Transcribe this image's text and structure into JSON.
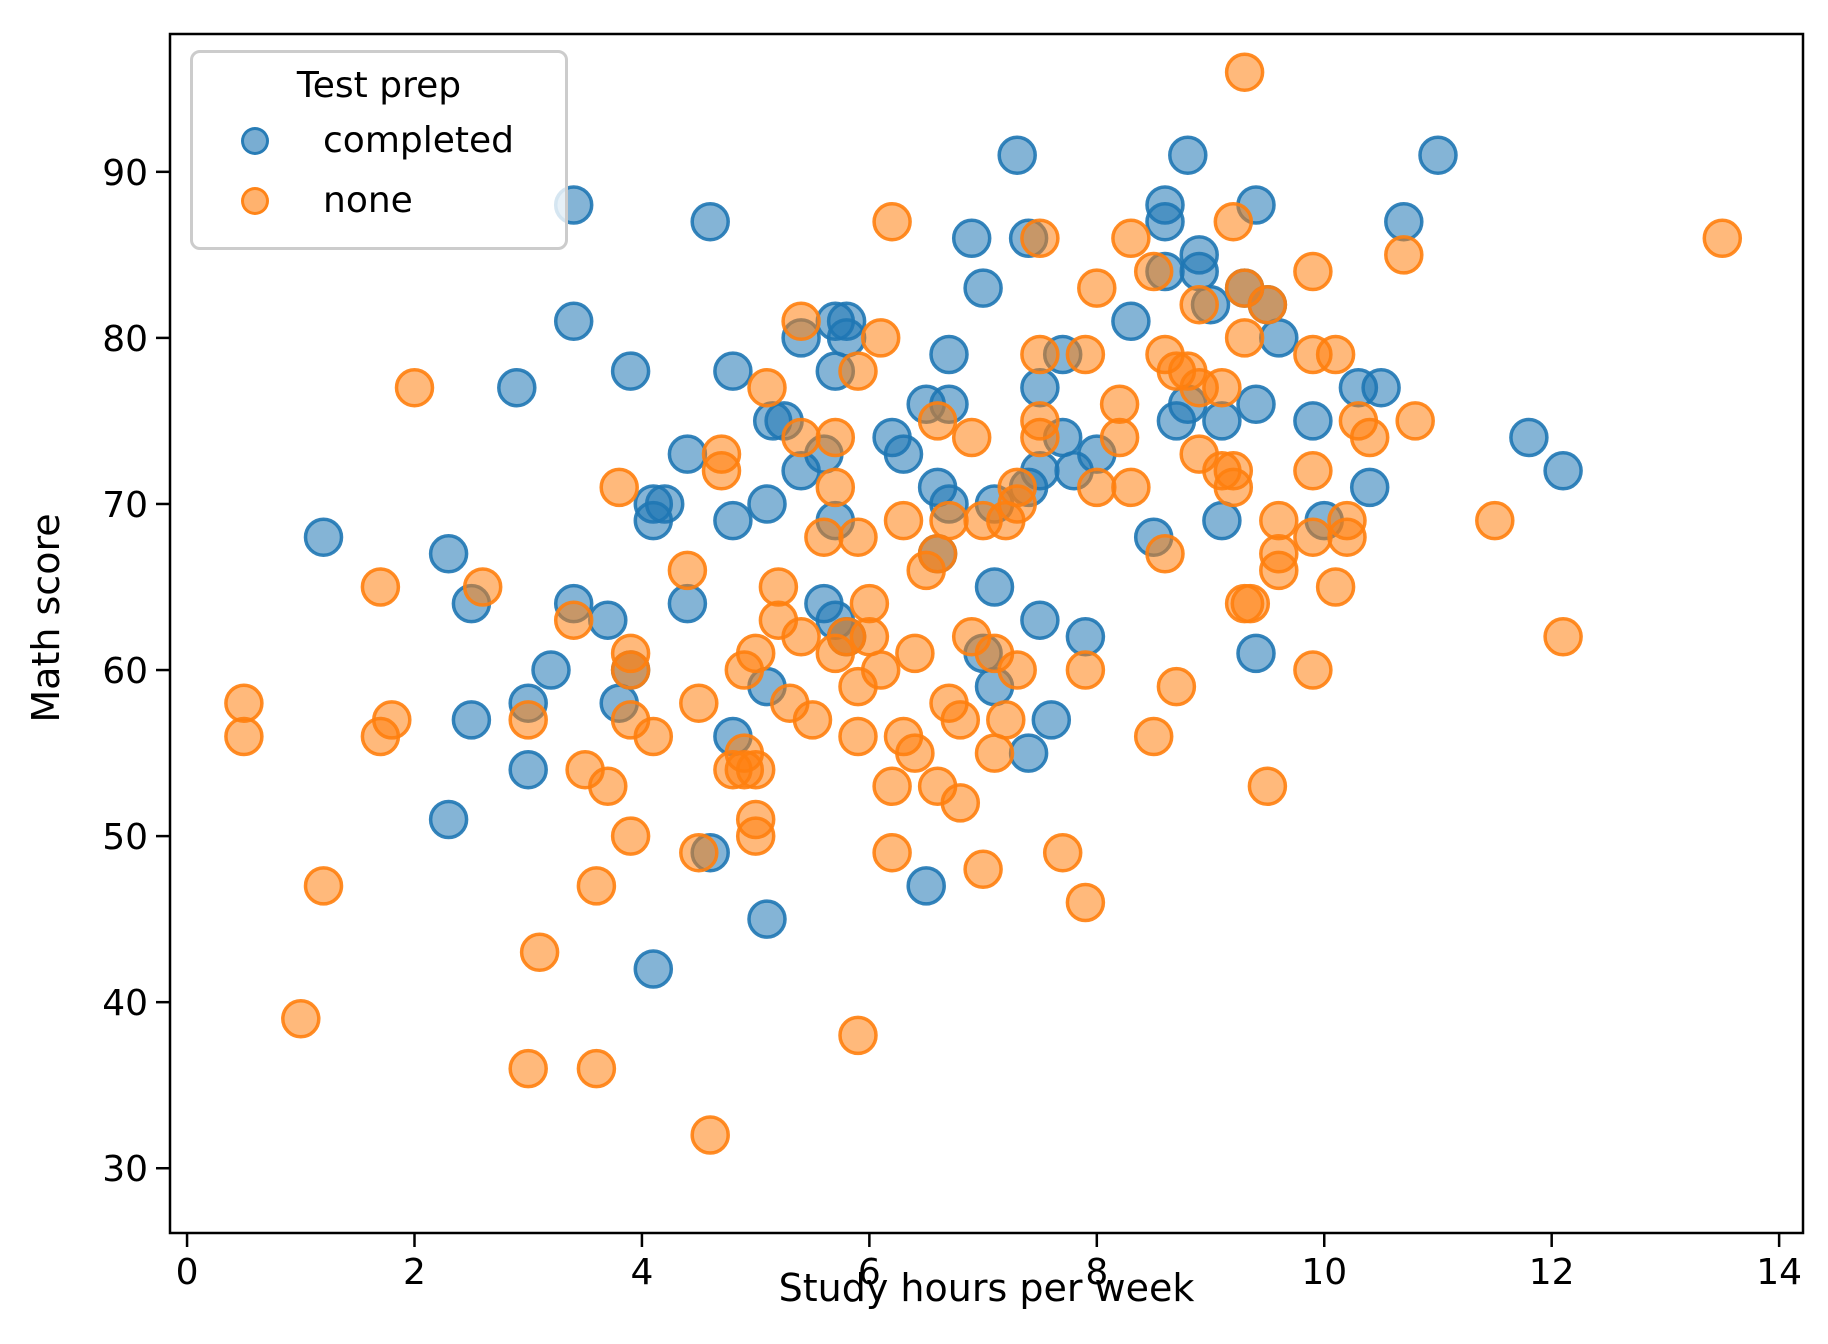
{
  "chart_data": {
    "type": "scatter",
    "title": "",
    "xlabel": "Study hours per week",
    "ylabel": "Math score",
    "xlim": [
      -0.15,
      14.21
    ],
    "ylim": [
      26.1,
      98.3
    ],
    "xticks": [
      0,
      2,
      4,
      6,
      8,
      10,
      12,
      14
    ],
    "yticks": [
      30,
      40,
      50,
      60,
      70,
      80,
      90
    ],
    "grid": false,
    "legend": {
      "title": "Test prep",
      "position": "upper left",
      "entries": [
        {
          "label": "completed",
          "color": "#1f77b4"
        },
        {
          "label": "none",
          "color": "#ff7f0e"
        }
      ]
    },
    "series": [
      {
        "name": "completed",
        "color": "#1f77b4",
        "points": [
          [
            3.4,
            88
          ],
          [
            4.6,
            87
          ],
          [
            7.3,
            91
          ],
          [
            8.8,
            91
          ],
          [
            11.0,
            91
          ],
          [
            3.4,
            81
          ],
          [
            2.9,
            77
          ],
          [
            6.9,
            86
          ],
          [
            7.4,
            86
          ],
          [
            7.0,
            83
          ],
          [
            8.6,
            88
          ],
          [
            9.4,
            88
          ],
          [
            8.6,
            87
          ],
          [
            10.7,
            87
          ],
          [
            8.9,
            85
          ],
          [
            8.6,
            84
          ],
          [
            8.9,
            84
          ],
          [
            9.3,
            83
          ],
          [
            9.5,
            82
          ],
          [
            9.0,
            82
          ],
          [
            8.3,
            81
          ],
          [
            5.4,
            80
          ],
          [
            5.7,
            81
          ],
          [
            5.8,
            81
          ],
          [
            5.8,
            80
          ],
          [
            5.7,
            78
          ],
          [
            4.8,
            78
          ],
          [
            3.9,
            78
          ],
          [
            6.7,
            79
          ],
          [
            7.7,
            79
          ],
          [
            9.6,
            80
          ],
          [
            6.5,
            76
          ],
          [
            6.7,
            76
          ],
          [
            8.8,
            76
          ],
          [
            9.4,
            76
          ],
          [
            9.1,
            75
          ],
          [
            8.7,
            75
          ],
          [
            9.9,
            75
          ],
          [
            10.3,
            77
          ],
          [
            10.5,
            77
          ],
          [
            7.5,
            77
          ],
          [
            5.15,
            75
          ],
          [
            5.25,
            75
          ],
          [
            6.2,
            74
          ],
          [
            6.3,
            73
          ],
          [
            4.4,
            73
          ],
          [
            5.6,
            73
          ],
          [
            5.4,
            72
          ],
          [
            7.5,
            72
          ],
          [
            7.8,
            72
          ],
          [
            7.7,
            74
          ],
          [
            8.0,
            73
          ],
          [
            7.4,
            71
          ],
          [
            6.6,
            71
          ],
          [
            6.7,
            70
          ],
          [
            7.1,
            70
          ],
          [
            4.1,
            70
          ],
          [
            4.2,
            70
          ],
          [
            4.1,
            69
          ],
          [
            5.1,
            70
          ],
          [
            4.8,
            69
          ],
          [
            5.7,
            69
          ],
          [
            9.1,
            69
          ],
          [
            10.0,
            69
          ],
          [
            10.4,
            71
          ],
          [
            11.8,
            74
          ],
          [
            12.1,
            72
          ],
          [
            8.5,
            68
          ],
          [
            6.6,
            67
          ],
          [
            1.2,
            68
          ],
          [
            2.3,
            67
          ],
          [
            2.5,
            64
          ],
          [
            3.4,
            64
          ],
          [
            4.4,
            64
          ],
          [
            3.7,
            63
          ],
          [
            5.6,
            64
          ],
          [
            5.7,
            63
          ],
          [
            5.8,
            62
          ],
          [
            7.5,
            63
          ],
          [
            7.9,
            62
          ],
          [
            7.1,
            65
          ],
          [
            9.4,
            61
          ],
          [
            7.0,
            61
          ],
          [
            3.2,
            60
          ],
          [
            3.9,
            60
          ],
          [
            3.0,
            58
          ],
          [
            2.5,
            57
          ],
          [
            3.8,
            58
          ],
          [
            5.1,
            59
          ],
          [
            7.1,
            59
          ],
          [
            7.6,
            57
          ],
          [
            7.4,
            55
          ],
          [
            3.0,
            54
          ],
          [
            4.8,
            56
          ],
          [
            2.3,
            51
          ],
          [
            4.6,
            49
          ],
          [
            5.1,
            45
          ],
          [
            4.1,
            42
          ],
          [
            6.5,
            47
          ]
        ]
      },
      {
        "name": "none",
        "color": "#ff7f0e",
        "points": [
          [
            9.3,
            96
          ],
          [
            6.2,
            87
          ],
          [
            9.2,
            87
          ],
          [
            13.5,
            86
          ],
          [
            7.5,
            86
          ],
          [
            8.3,
            86
          ],
          [
            10.7,
            85
          ],
          [
            8.5,
            84
          ],
          [
            9.9,
            84
          ],
          [
            8.0,
            83
          ],
          [
            9.3,
            83
          ],
          [
            9.5,
            82
          ],
          [
            8.9,
            82
          ],
          [
            2.0,
            77
          ],
          [
            5.4,
            81
          ],
          [
            6.1,
            80
          ],
          [
            9.3,
            80
          ],
          [
            9.9,
            79
          ],
          [
            10.1,
            79
          ],
          [
            8.6,
            79
          ],
          [
            7.5,
            79
          ],
          [
            7.9,
            79
          ],
          [
            8.7,
            78
          ],
          [
            8.8,
            78
          ],
          [
            8.9,
            77
          ],
          [
            9.1,
            77
          ],
          [
            5.9,
            78
          ],
          [
            5.1,
            77
          ],
          [
            8.2,
            76
          ],
          [
            10.3,
            75
          ],
          [
            10.8,
            75
          ],
          [
            7.5,
            75
          ],
          [
            7.5,
            74
          ],
          [
            10.4,
            74
          ],
          [
            8.2,
            74
          ],
          [
            5.4,
            74
          ],
          [
            5.7,
            74
          ],
          [
            6.9,
            74
          ],
          [
            6.6,
            75
          ],
          [
            4.7,
            73
          ],
          [
            4.7,
            72
          ],
          [
            8.9,
            73
          ],
          [
            9.1,
            72
          ],
          [
            9.2,
            72
          ],
          [
            9.2,
            71
          ],
          [
            9.9,
            72
          ],
          [
            8.0,
            71
          ],
          [
            8.3,
            71
          ],
          [
            3.8,
            71
          ],
          [
            5.7,
            71
          ],
          [
            7.3,
            71
          ],
          [
            7.3,
            70
          ],
          [
            7.2,
            69
          ],
          [
            6.3,
            69
          ],
          [
            6.7,
            69
          ],
          [
            7.0,
            69
          ],
          [
            9.6,
            69
          ],
          [
            10.2,
            69
          ],
          [
            11.5,
            69
          ],
          [
            9.9,
            68
          ],
          [
            10.2,
            68
          ],
          [
            8.6,
            67
          ],
          [
            9.6,
            67
          ],
          [
            9.6,
            66
          ],
          [
            4.4,
            66
          ],
          [
            5.6,
            68
          ],
          [
            5.9,
            68
          ],
          [
            6.6,
            67
          ],
          [
            6.5,
            66
          ],
          [
            1.7,
            65
          ],
          [
            2.6,
            65
          ],
          [
            5.2,
            65
          ],
          [
            10.1,
            65
          ],
          [
            9.3,
            64
          ],
          [
            9.35,
            64
          ],
          [
            6.0,
            64
          ],
          [
            5.2,
            63
          ],
          [
            5.4,
            62
          ],
          [
            5.8,
            62
          ],
          [
            6.0,
            62
          ],
          [
            6.9,
            62
          ],
          [
            12.1,
            62
          ],
          [
            3.4,
            63
          ],
          [
            3.9,
            61
          ],
          [
            3.9,
            60
          ],
          [
            5.0,
            61
          ],
          [
            5.7,
            61
          ],
          [
            6.4,
            61
          ],
          [
            7.1,
            61
          ],
          [
            4.9,
            60
          ],
          [
            6.1,
            60
          ],
          [
            7.9,
            60
          ],
          [
            7.3,
            60
          ],
          [
            9.9,
            60
          ],
          [
            5.9,
            59
          ],
          [
            8.7,
            59
          ],
          [
            0.5,
            58
          ],
          [
            4.5,
            58
          ],
          [
            5.3,
            58
          ],
          [
            6.7,
            58
          ],
          [
            3.0,
            57
          ],
          [
            1.8,
            57
          ],
          [
            3.9,
            57
          ],
          [
            5.5,
            57
          ],
          [
            6.8,
            57
          ],
          [
            7.2,
            57
          ],
          [
            1.7,
            56
          ],
          [
            0.5,
            56
          ],
          [
            4.1,
            56
          ],
          [
            5.9,
            56
          ],
          [
            6.3,
            56
          ],
          [
            8.5,
            56
          ],
          [
            6.4,
            55
          ],
          [
            7.1,
            55
          ],
          [
            4.9,
            55
          ],
          [
            3.5,
            54
          ],
          [
            4.8,
            54
          ],
          [
            4.9,
            54
          ],
          [
            5.0,
            54
          ],
          [
            6.2,
            53
          ],
          [
            6.6,
            53
          ],
          [
            6.8,
            52
          ],
          [
            3.7,
            53
          ],
          [
            9.5,
            53
          ],
          [
            5.0,
            51
          ],
          [
            5.0,
            50
          ],
          [
            3.9,
            50
          ],
          [
            4.5,
            49
          ],
          [
            6.2,
            49
          ],
          [
            7.7,
            49
          ],
          [
            7.0,
            48
          ],
          [
            1.2,
            47
          ],
          [
            3.6,
            47
          ],
          [
            7.9,
            46
          ],
          [
            3.1,
            43
          ],
          [
            1.0,
            39
          ],
          [
            5.9,
            38
          ],
          [
            3.6,
            36
          ],
          [
            3.0,
            36
          ],
          [
            4.6,
            32
          ]
        ]
      }
    ],
    "style": {
      "marker_radius_px": 18,
      "marker_fill_opacity": 0.55,
      "marker_stroke_opacity": 0.9,
      "marker_stroke_width": 3.5,
      "spine_color": "#000000",
      "tick_font_px": 36,
      "background": "#ffffff"
    }
  }
}
